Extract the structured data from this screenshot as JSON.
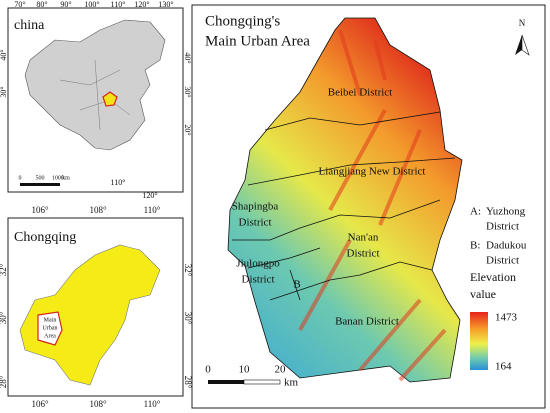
{
  "china_panel": {
    "title": "china",
    "top_labels": [
      "70°",
      "80°",
      "90°",
      "100°",
      "110°",
      "120°",
      "130°"
    ],
    "left_labels": [
      "40°",
      "30°"
    ],
    "right_labels": [
      "40°",
      "30°",
      "20°"
    ],
    "bottom_labels": [
      "110°",
      "120°"
    ],
    "scale_labels": [
      "0",
      "500",
      "1000",
      "km"
    ]
  },
  "chongqing_panel": {
    "title": "Chongqing",
    "top_labels": [
      "106°",
      "108°",
      "110°"
    ],
    "bottom_labels": [
      "106°",
      "108°",
      "110°"
    ],
    "left_labels": [
      "32°",
      "30°",
      "28°"
    ],
    "right_labels": [
      "32°",
      "30°",
      "28°"
    ],
    "main_urban_label": [
      "Main",
      "Urban",
      "Area"
    ]
  },
  "main_panel": {
    "title": [
      "Chongqing's",
      "Main Urban Area"
    ],
    "north": "N",
    "districts": [
      {
        "lines": [
          "Beibei District"
        ]
      },
      {
        "lines": [
          "Liangjiang New District"
        ]
      },
      {
        "lines": [
          "Shapingba",
          "District"
        ]
      },
      {
        "lines": [
          "Nan'an",
          "District"
        ]
      },
      {
        "lines": [
          "Jiulongpo",
          "District"
        ]
      },
      {
        "lines": [
          "B"
        ]
      },
      {
        "lines": [
          "Banan District"
        ]
      }
    ],
    "legend": {
      "items": [
        {
          "key": "A:",
          "lines": [
            "Yuzhong",
            "District"
          ]
        },
        {
          "key": "B:",
          "lines": [
            "Dadukou",
            "District"
          ]
        }
      ],
      "elevation_title": [
        "Elevation",
        "value"
      ],
      "max": 1473,
      "min": 164
    },
    "scale_labels": [
      0,
      10,
      20
    ],
    "scale_unit": "km"
  }
}
